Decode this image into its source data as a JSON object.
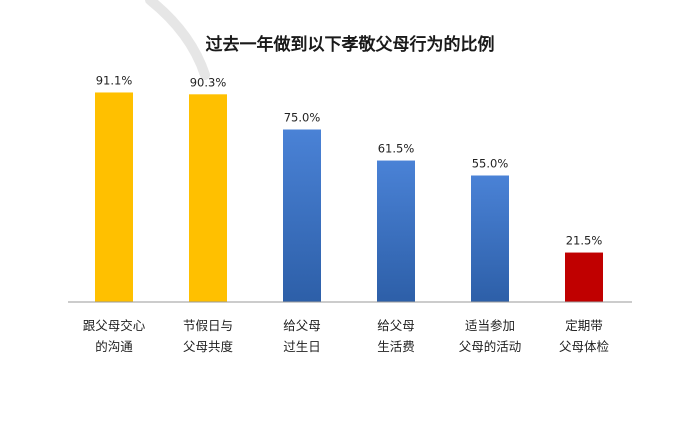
{
  "chart_data": {
    "type": "bar",
    "title": "过去一年做到以下孝敬父母行为的比例",
    "categories": [
      [
        "跟父母交心",
        "的沟通"
      ],
      [
        "节假日与",
        "父母共度"
      ],
      [
        "给父母",
        "过生日"
      ],
      [
        "给父母",
        "生活费"
      ],
      [
        "适当参加",
        "父母的活动"
      ],
      [
        "定期带",
        "父母体检"
      ]
    ],
    "values": [
      91.1,
      90.3,
      75.0,
      61.5,
      55.0,
      21.5
    ],
    "value_labels": [
      "91.1%",
      "90.3%",
      "75.0%",
      "61.5%",
      "55.0%",
      "21.5%"
    ],
    "colors": [
      "#FFC000",
      "#FFC000",
      "#3A6FC4",
      "#3A6FC4",
      "#3A6FC4",
      "#C00000"
    ],
    "ylim": [
      0,
      100
    ],
    "grid": false,
    "legend": "none"
  }
}
